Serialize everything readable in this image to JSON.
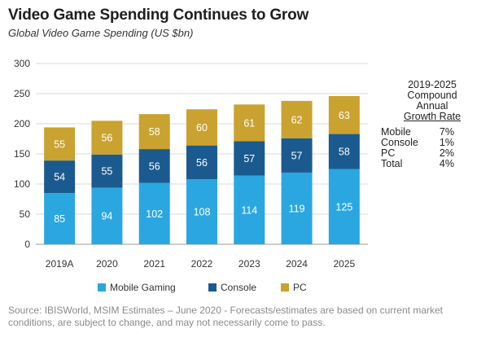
{
  "chart_data": {
    "type": "bar",
    "stacked": true,
    "title": "Video Game Spending Continues to Grow",
    "subtitle": "Global Video Game Spending (US $bn)",
    "categories": [
      "2019A",
      "2020",
      "2021",
      "2022",
      "2023",
      "2024",
      "2025"
    ],
    "series": [
      {
        "name": "Mobile Gaming",
        "color": "#2aa7e0",
        "values": [
          85,
          94,
          102,
          108,
          114,
          119,
          125
        ]
      },
      {
        "name": "Console",
        "color": "#1b5a8e",
        "values": [
          54,
          55,
          56,
          56,
          57,
          57,
          58
        ]
      },
      {
        "name": "PC",
        "color": "#c9a230",
        "values": [
          55,
          56,
          58,
          60,
          61,
          62,
          63
        ]
      }
    ],
    "ylim": [
      0,
      300
    ],
    "yticks": [
      0,
      50,
      100,
      150,
      200,
      250,
      300
    ],
    "grid": true,
    "legend": "bottom"
  },
  "cagr": {
    "heading_lines": [
      "2019-2025",
      "Compound",
      "Annual"
    ],
    "heading_underlined": "Growth Rate",
    "rows": [
      {
        "label": "Mobile",
        "value": "7%"
      },
      {
        "label": "Console",
        "value": "1%"
      },
      {
        "label": "PC",
        "value": "2%"
      },
      {
        "label": "Total",
        "value": "4%"
      }
    ]
  },
  "source": "Source: IBISWorld, MSIM Estimates – June 2020 - Forecasts/estimates are based on current market conditions, are subject to change, and may not necessarily come to pass."
}
